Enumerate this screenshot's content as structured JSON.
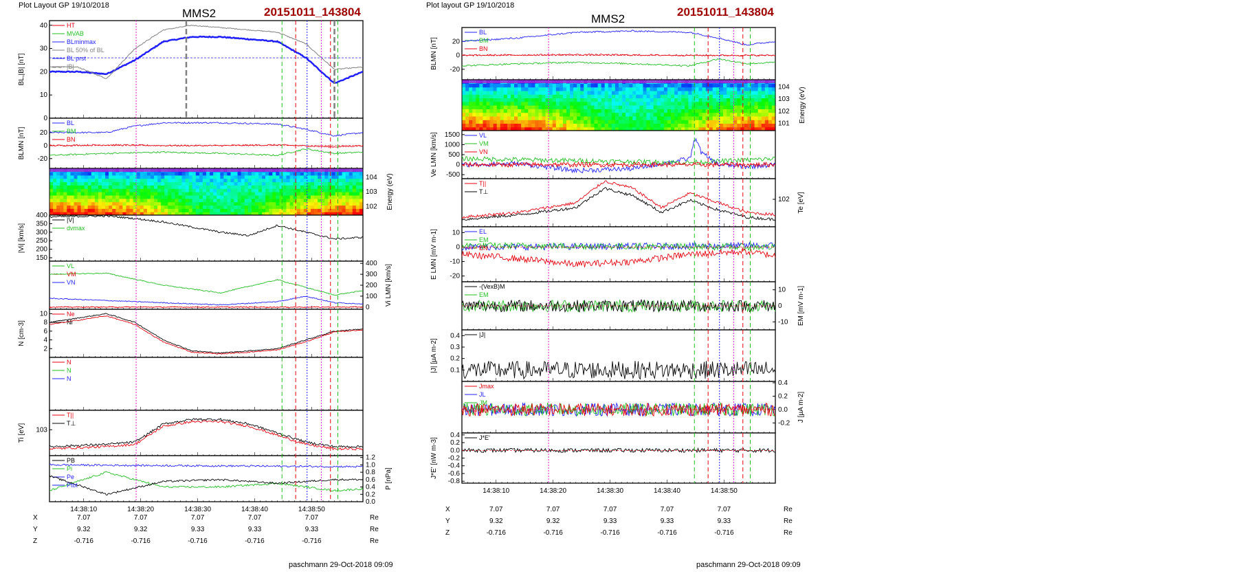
{
  "left": {
    "plot_layout": "Plot Layout GP 19/10/2018",
    "title": "MMS2",
    "event": "20151011_143804",
    "footer": "paschmann 29-Oct-2018 09:09"
  },
  "right": {
    "plot_layout": "Plot layout GP 19/10/2018",
    "title": "MMS2",
    "event": "20151011_143804",
    "footer": "paschmann 29-Oct-2018 09:09"
  },
  "time_ticks": [
    "14:38:10",
    "14:38:20",
    "14:38:30",
    "14:38:40",
    "14:38:50"
  ],
  "orbit": {
    "rows": [
      {
        "name": "X",
        "values": [
          "7.07",
          "7.07",
          "7.07",
          "7.07",
          "7.07"
        ],
        "unit": "Re"
      },
      {
        "name": "Y",
        "values": [
          "9.32",
          "9.32",
          "9.33",
          "9.33",
          "9.33"
        ],
        "unit": "Re"
      },
      {
        "name": "Z",
        "values": [
          "-0.716",
          "-0.716",
          "-0.716",
          "-0.716",
          "-0.716"
        ],
        "unit": "Re"
      }
    ]
  },
  "colors": {
    "red": "#e8000b",
    "green": "#1fbf1f",
    "blue": "#1f1fff",
    "magenta": "#e020e0",
    "black": "#000000",
    "gray": "#808080",
    "dred": "#a00000"
  },
  "chart_data": [
    {
      "type": "line",
      "id": "left-BL",
      "ylabel": "BL,|B| [nT]",
      "ylim": [
        0,
        42
      ],
      "yticks": [
        "0",
        "10",
        "20",
        "30",
        "40"
      ],
      "legend": [
        "HT",
        "MVAB",
        "BLminmax",
        "BL 50% of BL",
        "BL prst",
        "|B|"
      ],
      "series": [
        {
          "name": "BL prst",
          "color": "#1f1fff",
          "width": 2.5,
          "t": [
            0,
            5,
            10,
            15,
            20,
            25,
            30,
            35,
            40,
            45,
            50,
            55
          ],
          "y": [
            20,
            20,
            19,
            25,
            33,
            35,
            35,
            34,
            33,
            26,
            15,
            20
          ]
        },
        {
          "name": "|B|",
          "color": "#808080",
          "width": 1,
          "t": [
            0,
            5,
            10,
            15,
            20,
            25,
            30,
            35,
            40,
            45,
            50,
            55
          ],
          "y": [
            22,
            22,
            17,
            30,
            38,
            40,
            39,
            38,
            37,
            32,
            21,
            22
          ]
        }
      ],
      "hline": 26
    },
    {
      "type": "line",
      "id": "left-BLMN",
      "ylabel": "BLMN [nT]",
      "ylim": [
        -35,
        42
      ],
      "yticks": [
        "20",
        "0",
        "-20"
      ],
      "legend": [
        "BL",
        "BM",
        "BN"
      ],
      "series": [
        {
          "name": "BL",
          "color": "#1f1fff",
          "t": [
            0,
            10,
            15,
            20,
            30,
            40,
            45,
            50,
            55
          ],
          "y": [
            20,
            20,
            30,
            35,
            35,
            33,
            25,
            15,
            20
          ]
        },
        {
          "name": "BM",
          "color": "#1fbf1f",
          "t": [
            0,
            10,
            20,
            30,
            40,
            45,
            50,
            55
          ],
          "y": [
            -15,
            -12,
            -10,
            -12,
            -15,
            -5,
            -12,
            -10
          ]
        },
        {
          "name": "BN",
          "color": "#e8000b",
          "t": [
            0,
            10,
            20,
            30,
            40,
            50,
            55
          ],
          "y": [
            0,
            1,
            0,
            0,
            1,
            -2,
            0
          ]
        }
      ]
    },
    {
      "type": "heatmap",
      "id": "left-spectrogram",
      "ylabel": "Energy (eV)",
      "yticks": [
        "10^4",
        "10^3",
        "10^2"
      ]
    },
    {
      "type": "line",
      "id": "left-Vi",
      "ylabel": "|Vi| [km/s]",
      "ylim": [
        130,
        400
      ],
      "yticks": [
        "400",
        "350",
        "300",
        "250",
        "200",
        "150"
      ],
      "legend": [
        "|V|",
        "dvmax"
      ],
      "series": [
        {
          "name": "|V|",
          "color": "#000000",
          "t": [
            0,
            10,
            15,
            20,
            25,
            30,
            35,
            40,
            45,
            50,
            55
          ],
          "y": [
            390,
            395,
            380,
            360,
            330,
            300,
            280,
            340,
            300,
            260,
            270
          ]
        }
      ]
    },
    {
      "type": "line",
      "id": "left-ViLMN",
      "ylabel": "Vi LMN [km/s]",
      "ylim": [
        -20,
        420
      ],
      "yticks": [
        "400",
        "300",
        "200",
        "100",
        "0"
      ],
      "legend": [
        "VL",
        "VM",
        "VN"
      ],
      "series": [
        {
          "name": "VL",
          "color": "#1fbf1f",
          "t": [
            0,
            10,
            20,
            30,
            40,
            45,
            50,
            55
          ],
          "y": [
            300,
            310,
            200,
            130,
            250,
            180,
            110,
            150
          ]
        },
        {
          "name": "VN",
          "color": "#1f1fff",
          "t": [
            0,
            10,
            20,
            30,
            40,
            45,
            50,
            55
          ],
          "y": [
            80,
            60,
            40,
            20,
            50,
            100,
            40,
            30
          ]
        },
        {
          "name": "VM",
          "color": "#e8000b",
          "t": [
            0,
            55
          ],
          "y": [
            0,
            0
          ]
        }
      ]
    },
    {
      "type": "line",
      "id": "left-N",
      "ylabel": "N [cm-3]",
      "ylim": [
        0,
        11
      ],
      "yticks": [
        "10",
        "8",
        "6",
        "4",
        "2"
      ],
      "legend": [
        "Ne",
        "Ni"
      ],
      "series": [
        {
          "name": "Ni",
          "color": "#000000",
          "t": [
            0,
            5,
            10,
            15,
            20,
            25,
            30,
            35,
            40,
            45,
            50,
            55
          ],
          "y": [
            8,
            9,
            10,
            8,
            4,
            1.5,
            1,
            1.5,
            2,
            4,
            6,
            6.5
          ]
        },
        {
          "name": "Ne",
          "color": "#e8000b",
          "t": [
            0,
            5,
            10,
            15,
            20,
            25,
            30,
            35,
            40,
            45,
            50,
            55
          ],
          "y": [
            7.5,
            8.5,
            9.5,
            7.5,
            3.5,
            1.2,
            0.8,
            1.2,
            1.7,
            3.6,
            5.8,
            6.3
          ]
        }
      ]
    },
    {
      "type": "line",
      "id": "left-N3",
      "ylabel": "",
      "legend": [
        "N",
        "N",
        "N"
      ],
      "series": []
    },
    {
      "type": "line",
      "id": "left-Ti",
      "ylabel": "Ti [eV]",
      "ylim": [
        0,
        10
      ],
      "yticks": [
        "10^3"
      ],
      "legend": [
        "T||",
        "T⊥"
      ],
      "series": [
        {
          "name": "T⊥",
          "color": "#000000",
          "t": [
            0,
            10,
            15,
            20,
            25,
            30,
            35,
            40,
            45,
            50,
            55
          ],
          "y": [
            2,
            2.5,
            3,
            7,
            8,
            8,
            7,
            5,
            3,
            2,
            2
          ]
        },
        {
          "name": "T||",
          "color": "#e8000b",
          "t": [
            0,
            10,
            15,
            20,
            25,
            30,
            35,
            40,
            45,
            50,
            55
          ],
          "y": [
            1.5,
            2,
            2.5,
            6.5,
            7.5,
            7.5,
            6.5,
            4.5,
            2.5,
            1.5,
            1.5
          ]
        }
      ]
    },
    {
      "type": "line",
      "id": "left-P",
      "ylabel": "P [nPa]",
      "ylim": [
        0,
        1.25
      ],
      "yticks": [
        "1.2",
        "1.0",
        "0.8",
        "0.6",
        "0.4",
        "0.2",
        "0.0"
      ],
      "legend": [
        "PB",
        "Pi",
        "Pe",
        "Ptot"
      ],
      "series": [
        {
          "name": "Ptot",
          "color": "#1f1fff",
          "t": [
            0,
            55
          ],
          "y": [
            1.0,
            0.95
          ]
        },
        {
          "name": "Pi",
          "color": "#1fbf1f",
          "t": [
            0,
            10,
            20,
            30,
            40,
            50,
            55
          ],
          "y": [
            0.3,
            0.8,
            0.4,
            0.4,
            0.5,
            0.3,
            0.35
          ]
        },
        {
          "name": "PB",
          "color": "#000000",
          "t": [
            0,
            10,
            20,
            30,
            40,
            50,
            55
          ],
          "y": [
            0.7,
            0.2,
            0.55,
            0.6,
            0.5,
            0.6,
            0.6
          ]
        }
      ]
    },
    {
      "type": "line",
      "id": "right-BLMN",
      "ylabel": "BLMN [nT]",
      "ylim": [
        -35,
        40
      ],
      "yticks": [
        "20",
        "0",
        "-20"
      ],
      "legend": [
        "BL",
        "BM",
        "BN"
      ],
      "series": [
        {
          "name": "BL",
          "color": "#1f1fff",
          "t": [
            0,
            10,
            20,
            30,
            40,
            45,
            50,
            55
          ],
          "y": [
            20,
            25,
            33,
            35,
            33,
            25,
            15,
            20
          ]
        },
        {
          "name": "BM",
          "color": "#1fbf1f",
          "t": [
            0,
            10,
            20,
            30,
            40,
            45,
            50,
            55
          ],
          "y": [
            -15,
            -12,
            -10,
            -12,
            -15,
            -5,
            -12,
            -10
          ]
        },
        {
          "name": "BN",
          "color": "#e8000b",
          "t": [
            0,
            20,
            40,
            55
          ],
          "y": [
            0,
            1,
            0,
            0
          ]
        }
      ]
    },
    {
      "type": "heatmap",
      "id": "right-spectrogram",
      "ylabel": "Energy (eV)",
      "yticks": [
        "10^4",
        "10^3",
        "10^2",
        "10^1"
      ]
    },
    {
      "type": "line",
      "id": "right-Ve",
      "ylabel": "Ve LMN [km/s]",
      "ylim": [
        -700,
        1700
      ],
      "yticks": [
        "1500",
        "1000",
        "500",
        "0",
        "-500"
      ],
      "legend": [
        "VL",
        "VM",
        "VN"
      ],
      "series": [
        {
          "name": "VL",
          "color": "#1f1fff",
          "t": [
            0,
            10,
            20,
            30,
            40,
            41,
            42,
            45,
            50,
            55
          ],
          "y": [
            0,
            50,
            -300,
            -200,
            300,
            1400,
            600,
            0,
            -100,
            0
          ]
        },
        {
          "name": "VM",
          "color": "#1fbf1f",
          "t": [
            0,
            20,
            40,
            55
          ],
          "y": [
            300,
            200,
            100,
            300
          ]
        },
        {
          "name": "VN",
          "color": "#e8000b",
          "t": [
            0,
            55
          ],
          "y": [
            0,
            0
          ]
        }
      ]
    },
    {
      "type": "line",
      "id": "right-Te",
      "ylabel": "Te [eV]",
      "ylim": [
        0,
        10
      ],
      "yticks": [
        "10^2"
      ],
      "legend": [
        "T||",
        "T⊥"
      ],
      "series": [
        {
          "name": "T||",
          "color": "#e8000b",
          "t": [
            0,
            10,
            20,
            25,
            30,
            35,
            40,
            45,
            50,
            55
          ],
          "y": [
            2,
            3,
            5,
            9.5,
            8,
            4,
            7,
            5,
            3,
            2.5
          ]
        },
        {
          "name": "T⊥",
          "color": "#000000",
          "t": [
            0,
            10,
            20,
            25,
            30,
            35,
            40,
            45,
            50,
            55
          ],
          "y": [
            1.5,
            2.5,
            4,
            8,
            6.5,
            3,
            5.5,
            3.5,
            2,
            1.5
          ]
        }
      ]
    },
    {
      "type": "line",
      "id": "right-E",
      "ylabel": "E LMN [mV m-1]",
      "ylim": [
        -24,
        14
      ],
      "yticks": [
        "10",
        "0",
        "-10",
        "-20"
      ],
      "legend": [
        "EL",
        "EM",
        "EN"
      ],
      "series": [
        {
          "name": "EL",
          "color": "#1f1fff",
          "t": [
            0,
            55
          ],
          "y": [
            0,
            1
          ]
        },
        {
          "name": "EM",
          "color": "#1fbf1f",
          "t": [
            0,
            55
          ],
          "y": [
            1,
            0
          ]
        },
        {
          "name": "EN",
          "color": "#e8000b",
          "t": [
            0,
            10,
            20,
            30,
            40,
            50,
            55
          ],
          "y": [
            -5,
            -8,
            -12,
            -10,
            -5,
            -3,
            -6
          ]
        }
      ]
    },
    {
      "type": "line",
      "id": "right-EM",
      "ylabel": "EM [mV m-1]",
      "ylim": [
        -15,
        15
      ],
      "yticks": [
        "10",
        "0",
        "-10"
      ],
      "legend": [
        "-(VexB)M",
        "EM"
      ],
      "series": [
        {
          "name": "EM",
          "color": "#1fbf1f",
          "t": [
            0,
            55
          ],
          "y": [
            0,
            0
          ]
        },
        {
          "name": "-(VexB)M",
          "color": "#000000",
          "t": [
            0,
            55
          ],
          "y": [
            0,
            0
          ]
        }
      ]
    },
    {
      "type": "line",
      "id": "right-J",
      "ylabel": "|J| [µA m-2]",
      "ylim": [
        0,
        0.45
      ],
      "yticks": [
        "0.4",
        "0.3",
        "0.2",
        "0.1"
      ],
      "legend": [
        "|J|"
      ],
      "series": [
        {
          "name": "|J|",
          "color": "#000000",
          "t": [
            0,
            55
          ],
          "y": [
            0.1,
            0.1
          ]
        }
      ]
    },
    {
      "type": "line",
      "id": "right-JLMN",
      "ylabel": "J [µA m-2]",
      "ylim": [
        -0.35,
        0.42
      ],
      "yticks": [
        "0.4",
        "0.2",
        "0.0",
        "-0.2"
      ],
      "legend": [
        "Jmax",
        "JL",
        "JM",
        "JN"
      ],
      "series": [
        {
          "name": "JL",
          "color": "#1f1fff",
          "t": [
            0,
            55
          ],
          "y": [
            0,
            0
          ]
        },
        {
          "name": "JM",
          "color": "#1fbf1f",
          "t": [
            0,
            55
          ],
          "y": [
            0,
            0
          ]
        },
        {
          "name": "JN",
          "color": "#e8000b",
          "t": [
            0,
            55
          ],
          "y": [
            0,
            0
          ]
        }
      ]
    },
    {
      "type": "line",
      "id": "right-JE",
      "ylabel": "J*E' [nW m-3]",
      "ylim": [
        -0.85,
        0.45
      ],
      "yticks": [
        "0.4",
        "0.2",
        "0.0",
        "-0.2",
        "-0.4",
        "-0.6",
        "-0.8"
      ],
      "legend": [
        "J*E'"
      ],
      "series": [
        {
          "name": "J*E'",
          "color": "#000000",
          "t": [
            0,
            55
          ],
          "y": [
            0,
            0
          ]
        }
      ]
    }
  ]
}
